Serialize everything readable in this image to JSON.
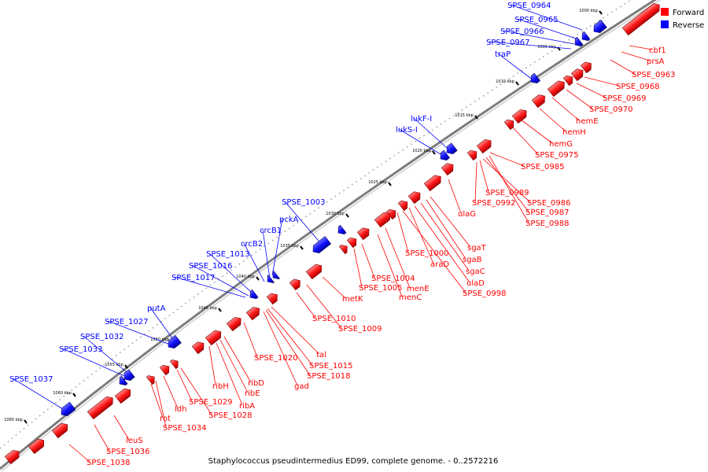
{
  "caption": "Staphylococcus pseudintermedius ED99, complete genome. - 0..2572216",
  "legend": [
    {
      "label": "Forward",
      "color": "#ff0000"
    },
    {
      "label": "Reverse",
      "color": "#0000ff"
    }
  ],
  "ticks": [
    "1000 kbp",
    "1005 kbp",
    "1010 kbp",
    "1015 kbp",
    "1020 kbp",
    "1025 kbp",
    "1030 kbp",
    "1035 kbp",
    "1040 kbp",
    "1045 kbp",
    "1050 kbp",
    "1055 kbp",
    "1060 kbp",
    "1065 kbp"
  ],
  "reverse_genes": [
    "SPSE_0964",
    "SPSE_0965",
    "SPSE_0966",
    "SPSE_0967",
    "traP",
    "lukF-I",
    "lukS-I",
    "SPSE_1003",
    "pckA",
    "crcB1",
    "crcB2",
    "SPSE_1013",
    "SPSE_1016",
    "SPSE_1017",
    "putA",
    "SPSE_1027",
    "SPSE_1032",
    "SPSE_1033",
    "SPSE_1037"
  ],
  "forward_genes": [
    "cbf1",
    "prsA",
    "SPSE_0963",
    "SPSE_0968",
    "SPSE_0969",
    "SPSE_0970",
    "hemE",
    "hemH",
    "hemG",
    "SPSE_0975",
    "SPSE_0985",
    "SPSE_0989",
    "SPSE_0986",
    "SPSE_0992",
    "SPSE_0987",
    "SPSE_0988",
    "ulaG",
    "sgaT",
    "sgaB",
    "sgaC",
    "SPSE_1000",
    "araD",
    "ulaD",
    "SPSE_0998",
    "SPSE_1004",
    "menE",
    "SPSE_1005",
    "menC",
    "metK",
    "SPSE_1010",
    "SPSE_1009",
    "tal",
    "SPSE_1015",
    "SPSE_1020",
    "SPSE_1018",
    "gad",
    "ribD",
    "ribH",
    "ribE",
    "ribA",
    "SPSE_1029",
    "SPSE_1028",
    "ldh",
    "rot",
    "SPSE_1034",
    "leuS",
    "SPSE_1036",
    "SPSE_1038"
  ]
}
